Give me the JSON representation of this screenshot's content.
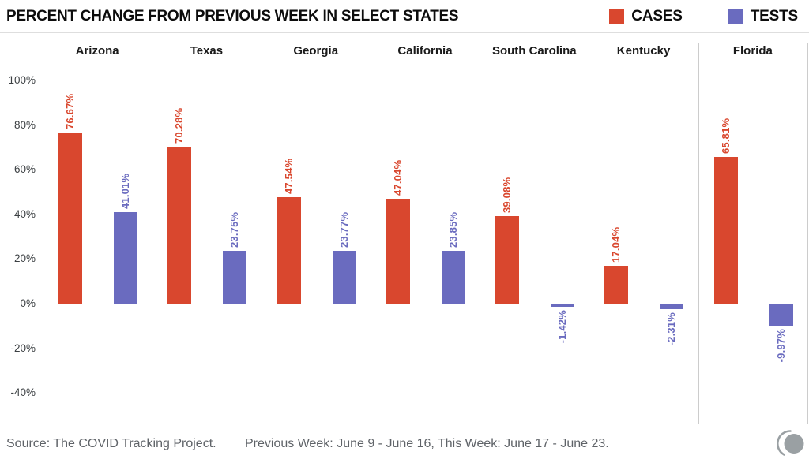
{
  "header": {
    "title": "PERCENT CHANGE FROM PREVIOUS WEEK IN SELECT STATES"
  },
  "legend": {
    "cases_label": "CASES",
    "tests_label": "TESTS"
  },
  "colors": {
    "cases": "#D9472E",
    "tests": "#6A6BBF",
    "logo_gray": "#9AA0A3"
  },
  "chart_data": {
    "type": "bar",
    "title": "PERCENT CHANGE FROM PREVIOUS WEEK IN SELECT STATES",
    "categories": [
      "Arizona",
      "Texas",
      "Georgia",
      "California",
      "South Carolina",
      "Kentucky",
      "Florida"
    ],
    "series": [
      {
        "name": "CASES",
        "color": "#D9472E",
        "values": [
          76.67,
          70.28,
          47.54,
          47.04,
          39.08,
          17.04,
          65.81
        ],
        "labels": [
          "76.67%",
          "70.28%",
          "47.54%",
          "47.04%",
          "39.08%",
          "17.04%",
          "65.81%"
        ]
      },
      {
        "name": "TESTS",
        "color": "#6A6BBF",
        "values": [
          41.01,
          23.75,
          23.77,
          23.85,
          -1.42,
          -2.31,
          -9.97
        ],
        "labels": [
          "41.01%",
          "23.75%",
          "23.77%",
          "23.85%",
          "-1.42%",
          "-2.31%",
          "-9.97%"
        ]
      }
    ],
    "yticks": [
      100,
      80,
      60,
      40,
      20,
      0,
      -20,
      -40
    ],
    "ytick_labels": [
      "100%",
      "80%",
      "60%",
      "40%",
      "20%",
      "0%",
      "-20%",
      "-40%"
    ],
    "ylim": [
      -53,
      117
    ],
    "xlabel": "",
    "ylabel": "",
    "grid": "column-separators-with-dashed-zero-line",
    "legend_position": "top-right"
  },
  "footer": {
    "source": "Source: The COVID Tracking Project.",
    "weeks": "Previous Week: June 9 - June 16, This Week: June 17 - June 23."
  }
}
